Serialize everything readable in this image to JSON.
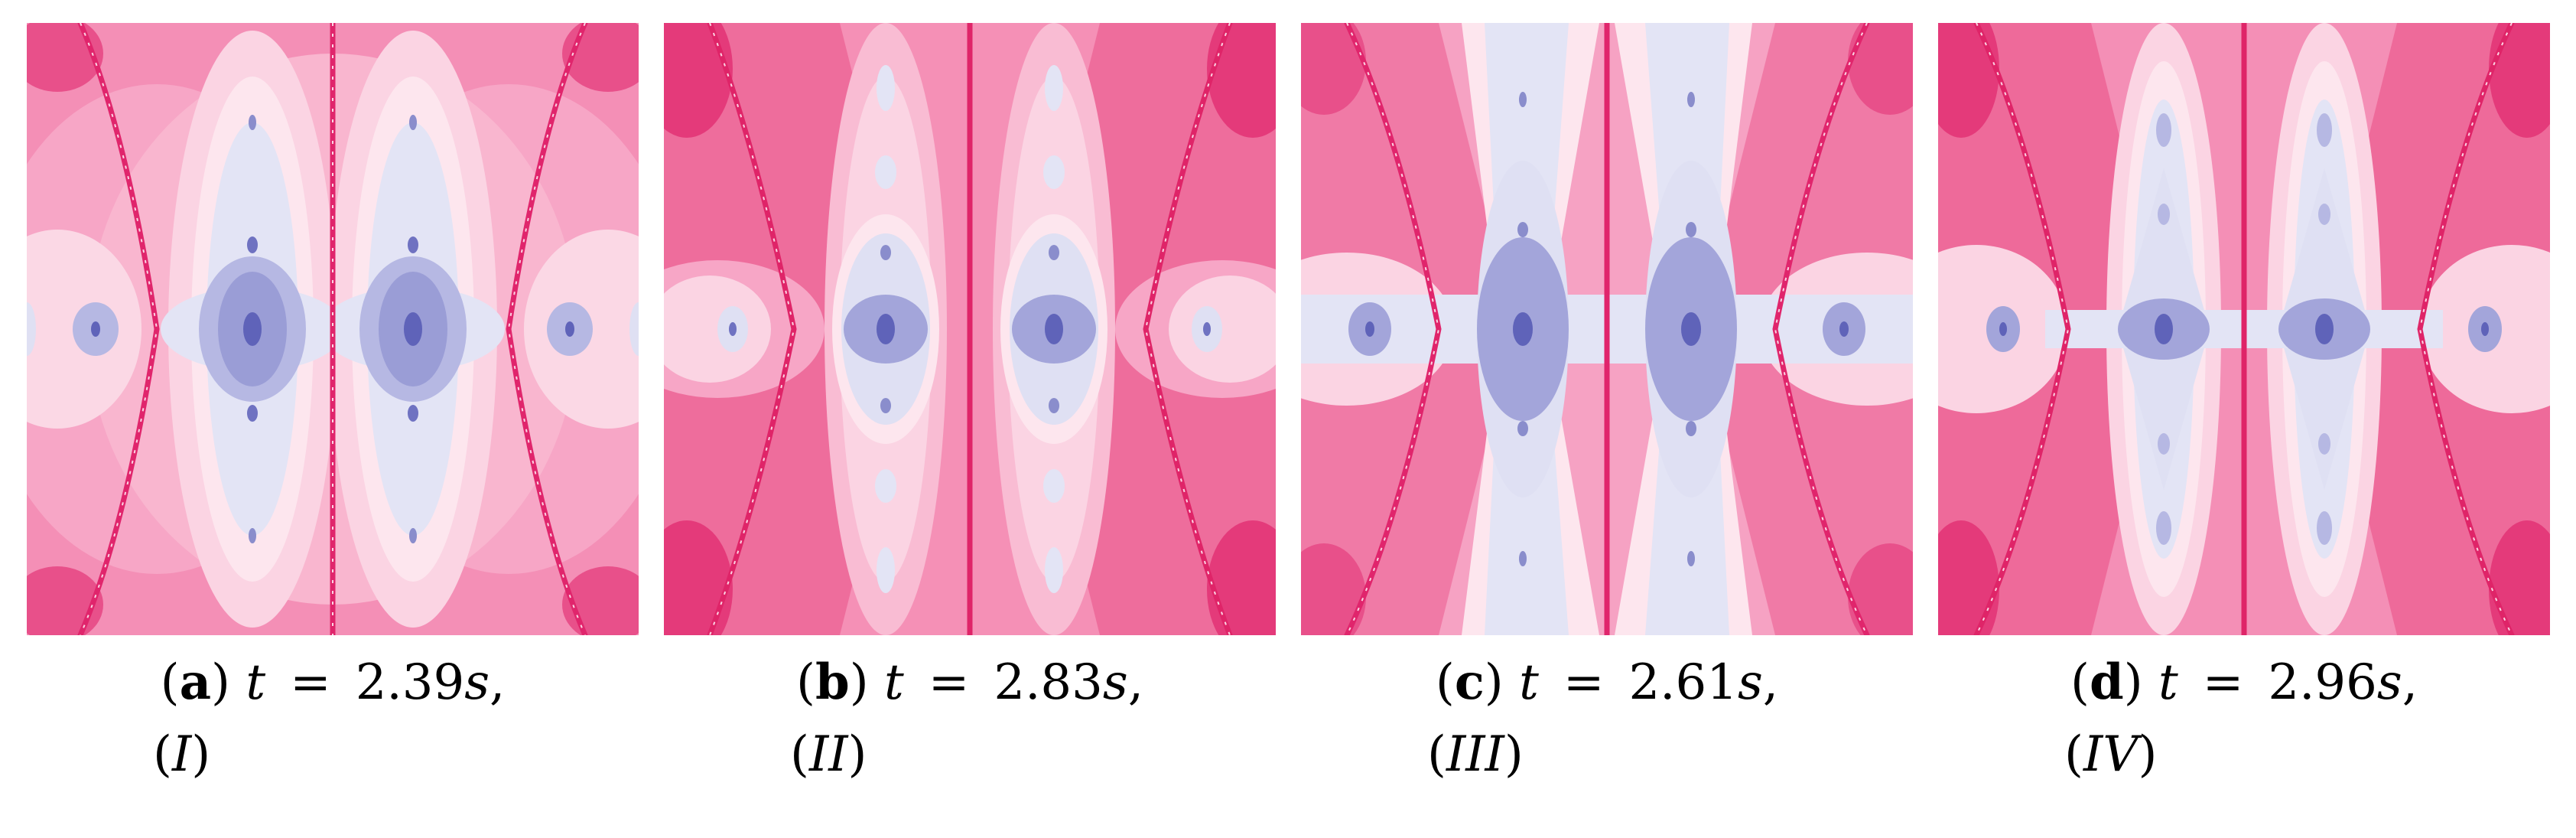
{
  "colors": {
    "deep_pink": "#e43a7a",
    "pink": "#f389b1",
    "light_pink": "#f9c8da",
    "pale_pink": "#fde5ee",
    "lavender": "#dfe0f3",
    "blue": "#a3a5da",
    "deep_blue": "#6f72c1"
  },
  "panels": [
    {
      "id": "a",
      "label": "a",
      "var": "t",
      "eq": "=",
      "value": "2.39",
      "unit": "s",
      "comma": ",",
      "regime": "I"
    },
    {
      "id": "b",
      "label": "b",
      "var": "t",
      "eq": "=",
      "value": "2.83",
      "unit": "s",
      "comma": ",",
      "regime": "II"
    },
    {
      "id": "c",
      "label": "c",
      "var": "t",
      "eq": "=",
      "value": "2.61",
      "unit": "s",
      "comma": ",",
      "regime": "III"
    },
    {
      "id": "d",
      "label": "d",
      "var": "t",
      "eq": "=",
      "value": "2.96",
      "unit": "s",
      "comma": ",",
      "regime": "IV"
    }
  ]
}
